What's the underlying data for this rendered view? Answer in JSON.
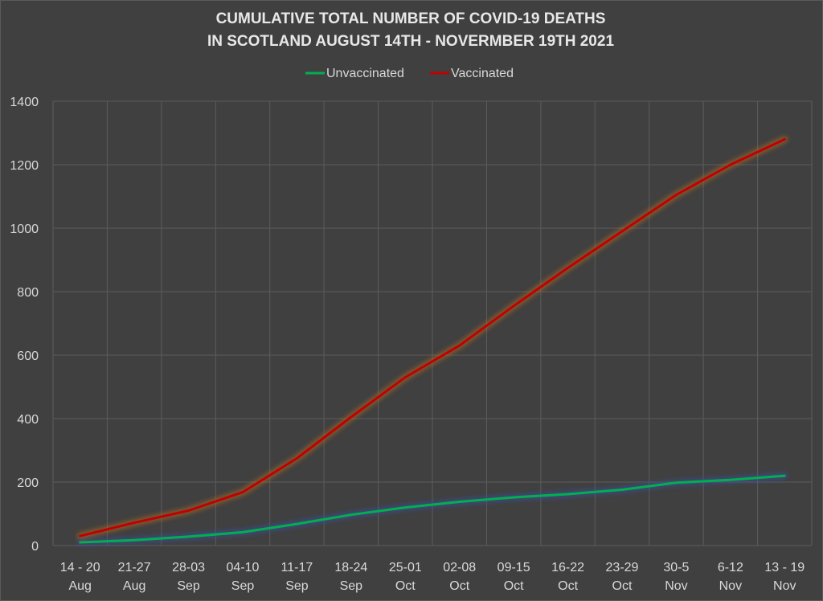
{
  "chart_data": {
    "type": "line",
    "title": [
      "CUMULATIVE TOTAL NUMBER OF COVID-19 DEATHS",
      "IN SCOTLAND AUGUST 14TH - NOVERMBER 19TH 2021"
    ],
    "categories": [
      [
        "14 - 20",
        "Aug"
      ],
      [
        "21-27",
        "Aug"
      ],
      [
        "28-03",
        "Sep"
      ],
      [
        "04-10",
        "Sep"
      ],
      [
        "11-17",
        "Sep"
      ],
      [
        "18-24",
        "Sep"
      ],
      [
        "25-01",
        "Oct"
      ],
      [
        "02-08",
        "Oct"
      ],
      [
        "09-15",
        "Oct"
      ],
      [
        "16-22",
        "Oct"
      ],
      [
        "23-29",
        "Oct"
      ],
      [
        "30-5",
        "Nov"
      ],
      [
        "6-12",
        "Nov"
      ],
      [
        "13 - 19",
        "Nov"
      ]
    ],
    "series": [
      {
        "name": "Unvaccinated",
        "color": "#00b050",
        "values": [
          10,
          17,
          28,
          42,
          68,
          97,
          120,
          138,
          152,
          162,
          176,
          198,
          207,
          220
        ]
      },
      {
        "name": "Vaccinated",
        "color": "#c00000",
        "values": [
          30,
          72,
          110,
          168,
          275,
          405,
          530,
          630,
          755,
          875,
          990,
          1105,
          1200,
          1280
        ]
      }
    ],
    "ylim": [
      0,
      1400
    ],
    "yticks": [
      0,
      200,
      400,
      600,
      800,
      1000,
      1200,
      1400
    ],
    "grid": true,
    "legend_position": "top-center"
  }
}
